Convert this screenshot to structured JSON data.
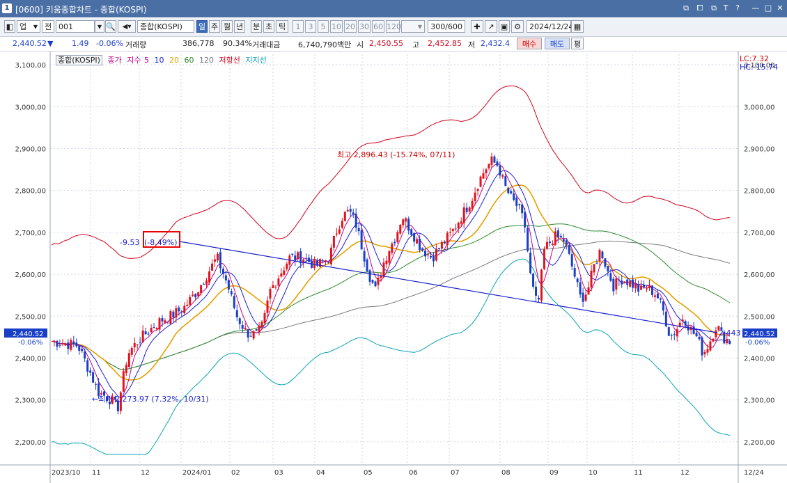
{
  "window": {
    "title": "[0600] 키움종합차트 - 종합(KOSPI)",
    "screen_no": "1",
    "buttons": [
      "⧉",
      "⧠",
      "T",
      "?",
      "—",
      "□",
      "✕"
    ]
  },
  "toolbar": {
    "market": "업",
    "total": "전",
    "code": "001",
    "name": "종합(KOSPI)",
    "periods": [
      "일",
      "주",
      "월",
      "년",
      "분",
      "초",
      "틱"
    ],
    "active_period": "일",
    "intervals": [
      "1",
      "3",
      "5",
      "10",
      "20",
      "30",
      "60",
      "120"
    ],
    "count": "300/600",
    "date": "2024/12/24"
  },
  "quote": {
    "price": "2,440.52",
    "arrow": "▼",
    "change": "1.49",
    "pct": "-0.06%",
    "vol_label": "거래량",
    "vol": "386,778",
    "vol_pct": "90.34%",
    "amt_label": "거래대금",
    "amt": "6,740,790백만",
    "open_label": "시",
    "open": "2,450.55",
    "high_label": "고",
    "high": "2,452.85",
    "low_label": "저",
    "low": "2,432.4",
    "buy": "매수",
    "sell": "매도",
    "eval": "평"
  },
  "legend": {
    "name": "종합(KOSPI)",
    "close": "종가",
    "index": "지수",
    "ma": [
      "5",
      "10",
      "20",
      "60",
      "120"
    ],
    "resistance": "저항선",
    "support": "지지선"
  },
  "chart_data": {
    "type": "candlestick",
    "y_ticks": [
      "3,100,00",
      "3,000,00",
      "2,900,00",
      "2,800,00",
      "2,700,00",
      "2,600,00",
      "2,500,00",
      "2,400,00",
      "2,300,00",
      "2,200,00"
    ],
    "y_values": [
      3100,
      3000,
      2900,
      2800,
      2700,
      2600,
      2500,
      2400,
      2300,
      2200
    ],
    "x_ticks": [
      "2023/10",
      "11",
      "12",
      "2024/01",
      "02",
      "03",
      "04",
      "05",
      "06",
      "07",
      "08",
      "09",
      "10",
      "11",
      "12"
    ],
    "right_label": "12/24",
    "ylim": [
      2145,
      3125
    ],
    "current": {
      "value": "2,440.52",
      "pct": "-0.06%"
    },
    "lc": "LC:7.32",
    "hc": "HC:-15.74",
    "annotations": {
      "high": "최고 2,896.43 (-15.74%, 07/11)",
      "low": "←최저 2,273.97 (7.32%, 10/31)",
      "trend_left": "-9.53",
      "trend_box": "(-8.49%)",
      "trend_right": "2,443"
    },
    "ohlc_closes": [
      [
        0,
        2440
      ],
      [
        40,
        2430
      ],
      [
        60,
        2360
      ],
      [
        70,
        2320
      ],
      [
        90,
        2300
      ],
      [
        100,
        2280
      ],
      [
        115,
        2410
      ],
      [
        130,
        2440
      ],
      [
        150,
        2470
      ],
      [
        165,
        2490
      ],
      [
        180,
        2500
      ],
      [
        200,
        2520
      ],
      [
        220,
        2560
      ],
      [
        235,
        2600
      ],
      [
        250,
        2640
      ],
      [
        265,
        2580
      ],
      [
        280,
        2500
      ],
      [
        295,
        2460
      ],
      [
        310,
        2455
      ],
      [
        320,
        2480
      ],
      [
        330,
        2560
      ],
      [
        345,
        2600
      ],
      [
        360,
        2640
      ],
      [
        380,
        2640
      ],
      [
        400,
        2620
      ],
      [
        420,
        2640
      ],
      [
        430,
        2700
      ],
      [
        440,
        2740
      ],
      [
        450,
        2750
      ],
      [
        460,
        2720
      ],
      [
        470,
        2660
      ],
      [
        480,
        2600
      ],
      [
        490,
        2560
      ],
      [
        500,
        2620
      ],
      [
        510,
        2660
      ],
      [
        520,
        2690
      ],
      [
        530,
        2740
      ],
      [
        545,
        2700
      ],
      [
        560,
        2660
      ],
      [
        575,
        2640
      ],
      [
        590,
        2670
      ],
      [
        605,
        2700
      ],
      [
        620,
        2740
      ],
      [
        635,
        2780
      ],
      [
        645,
        2820
      ],
      [
        655,
        2850
      ],
      [
        665,
        2870
      ],
      [
        675,
        2860
      ],
      [
        685,
        2810
      ],
      [
        695,
        2780
      ],
      [
        705,
        2760
      ],
      [
        715,
        2720
      ],
      [
        725,
        2580
      ],
      [
        735,
        2520
      ],
      [
        745,
        2660
      ],
      [
        760,
        2690
      ],
      [
        775,
        2680
      ],
      [
        790,
        2600
      ],
      [
        800,
        2540
      ],
      [
        810,
        2560
      ],
      [
        820,
        2620
      ],
      [
        830,
        2660
      ],
      [
        840,
        2610
      ],
      [
        850,
        2570
      ],
      [
        860,
        2590
      ],
      [
        875,
        2580
      ],
      [
        890,
        2560
      ],
      [
        900,
        2570
      ],
      [
        915,
        2550
      ],
      [
        925,
        2510
      ],
      [
        935,
        2450
      ],
      [
        945,
        2470
      ],
      [
        955,
        2500
      ],
      [
        965,
        2470
      ],
      [
        975,
        2450
      ],
      [
        985,
        2410
      ],
      [
        995,
        2440
      ],
      [
        1005,
        2480
      ],
      [
        1015,
        2450
      ],
      [
        1025,
        2440
      ]
    ]
  }
}
